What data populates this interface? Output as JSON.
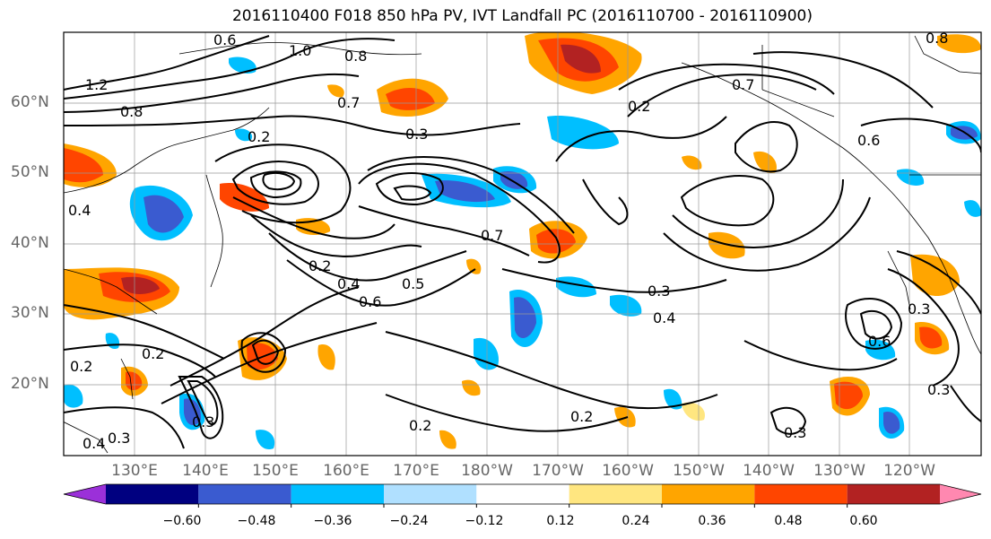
{
  "title": "2016110400 F018 850 hPa PV, IVT Landfall PC (2016110700 - 2016110900)",
  "lat_labels": [
    "60°N",
    "50°N",
    "40°N",
    "30°N",
    "20°N"
  ],
  "lon_labels": [
    "130°E",
    "140°E",
    "150°E",
    "160°E",
    "170°E",
    "180°W",
    "170°W",
    "160°W",
    "150°W",
    "140°W",
    "130°W",
    "120°W"
  ],
  "colorbar": {
    "colors": [
      "#9b30d9",
      "#000080",
      "#3a5bd0",
      "#00bfff",
      "#b0e0ff",
      "#ffffff",
      "#ffe680",
      "#ffa500",
      "#ff4500",
      "#b22222",
      "#ff88b0"
    ],
    "ticks": [
      "−0.60",
      "−0.48",
      "−0.36",
      "−0.24",
      "−0.12",
      "0.12",
      "0.24",
      "0.36",
      "0.48",
      "0.60"
    ]
  },
  "contour_labels": [
    "1.0",
    "0.8",
    "0.6",
    "1.2",
    "0.8",
    "0.7",
    "0.3",
    "0.2",
    "0.7",
    "0.3",
    "0.2",
    "0.4",
    "0.5",
    "0.6",
    "0.2",
    "0.3",
    "0.4",
    "0.2",
    "0.6",
    "0.7",
    "0.2",
    "0.3",
    "0.4",
    "0.6",
    "0.3",
    "0.2",
    "0.3",
    "0.2",
    "0.3",
    "0.4",
    "0.8"
  ]
}
